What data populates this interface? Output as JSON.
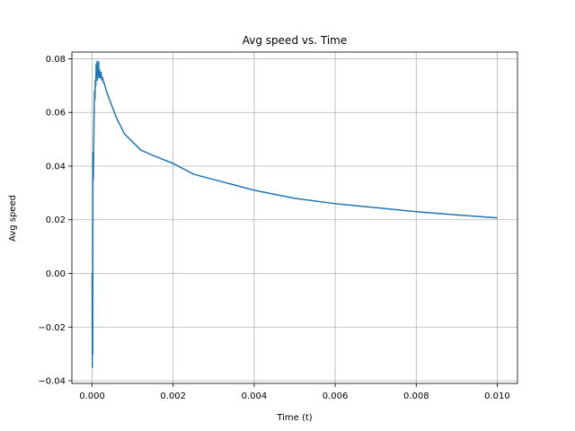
{
  "chart_data": {
    "type": "line",
    "title": "Avg speed vs. Time",
    "xlabel": "Time (t)",
    "ylabel": "Avg speed",
    "xlim": [
      -0.0005,
      0.0105
    ],
    "ylim": [
      -0.041,
      0.0825
    ],
    "grid": true,
    "line_color": "#1f77b4",
    "x_ticks": [
      {
        "value": 0.0,
        "label": "0.000"
      },
      {
        "value": 0.002,
        "label": "0.002"
      },
      {
        "value": 0.004,
        "label": "0.004"
      },
      {
        "value": 0.006,
        "label": "0.006"
      },
      {
        "value": 0.008,
        "label": "0.008"
      },
      {
        "value": 0.01,
        "label": "0.010"
      }
    ],
    "y_ticks": [
      {
        "value": -0.04,
        "label": "−0.04"
      },
      {
        "value": -0.02,
        "label": "−0.02"
      },
      {
        "value": 0.0,
        "label": "0.00"
      },
      {
        "value": 0.02,
        "label": "0.02"
      },
      {
        "value": 0.04,
        "label": "0.04"
      },
      {
        "value": 0.06,
        "label": "0.06"
      },
      {
        "value": 0.08,
        "label": "0.08"
      }
    ],
    "series": [
      {
        "x": [
          0.0,
          5e-06,
          1e-05,
          1.5e-05,
          2e-05,
          3e-05,
          4e-05,
          5e-05,
          6e-05,
          7e-05,
          8e-05,
          9e-05,
          0.0001,
          0.00011,
          0.00012,
          0.00013,
          0.00014,
          0.00015,
          0.00016,
          0.00017,
          0.00018,
          0.0002,
          0.00022,
          0.00024,
          0.00026,
          0.00028,
          0.0003,
          0.00035,
          0.0004,
          0.0005,
          0.0006,
          0.0007,
          0.0008,
          0.001,
          0.0012,
          0.0015,
          0.002,
          0.0025,
          0.003,
          0.0035,
          0.004,
          0.005,
          0.006,
          0.007,
          0.008,
          0.009,
          0.01
        ],
        "y": [
          0.0,
          -0.035,
          0.0,
          -0.03,
          0.045,
          0.035,
          0.05,
          0.06,
          0.068,
          0.065,
          0.072,
          0.07,
          0.078,
          0.074,
          0.079,
          0.072,
          0.077,
          0.075,
          0.079,
          0.073,
          0.076,
          0.073,
          0.075,
          0.072,
          0.073,
          0.071,
          0.071,
          0.068,
          0.066,
          0.062,
          0.058,
          0.055,
          0.052,
          0.049,
          0.046,
          0.044,
          0.041,
          0.037,
          0.035,
          0.033,
          0.031,
          0.028,
          0.026,
          0.0245,
          0.023,
          0.0218,
          0.0207
        ]
      }
    ]
  }
}
